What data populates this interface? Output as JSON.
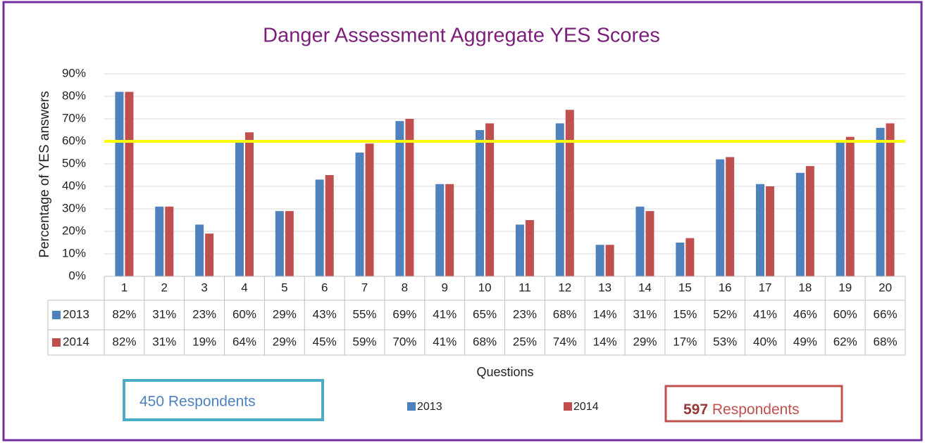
{
  "chart_data": {
    "type": "bar",
    "title": "Danger Assessment Aggregate YES Scores",
    "xlabel": "Questions",
    "ylabel": "Percentage of YES answers",
    "categories": [
      "1",
      "2",
      "3",
      "4",
      "5",
      "6",
      "7",
      "8",
      "9",
      "10",
      "11",
      "12",
      "13",
      "14",
      "15",
      "16",
      "17",
      "18",
      "19",
      "20"
    ],
    "series": [
      {
        "name": "2013",
        "color": "#4f81bd",
        "values": [
          82,
          31,
          23,
          60,
          29,
          43,
          55,
          69,
          41,
          65,
          23,
          68,
          14,
          31,
          15,
          52,
          41,
          46,
          60,
          66
        ],
        "value_labels": [
          "82%",
          "31%",
          "23%",
          "60%",
          "29%",
          "43%",
          "55%",
          "69%",
          "41%",
          "65%",
          "23%",
          "68%",
          "14%",
          "31%",
          "15%",
          "52%",
          "41%",
          "46%",
          "60%",
          "66%"
        ]
      },
      {
        "name": "2014",
        "color": "#c0504d",
        "values": [
          82,
          31,
          19,
          64,
          29,
          45,
          59,
          70,
          41,
          68,
          25,
          74,
          14,
          29,
          17,
          53,
          40,
          49,
          62,
          68
        ],
        "value_labels": [
          "82%",
          "31%",
          "19%",
          "64%",
          "29%",
          "45%",
          "59%",
          "70%",
          "41%",
          "68%",
          "25%",
          "74%",
          "14%",
          "29%",
          "17%",
          "53%",
          "40%",
          "49%",
          "62%",
          "68%"
        ]
      }
    ],
    "ylim": [
      0,
      90
    ],
    "yticks": [
      {
        "value": 0,
        "label": "0%"
      },
      {
        "value": 10,
        "label": "10%"
      },
      {
        "value": 20,
        "label": "20%"
      },
      {
        "value": 30,
        "label": "30%"
      },
      {
        "value": 40,
        "label": "40%"
      },
      {
        "value": 50,
        "label": "50%"
      },
      {
        "value": 60,
        "label": "60%"
      },
      {
        "value": 70,
        "label": "70%"
      },
      {
        "value": 80,
        "label": "80%"
      },
      {
        "value": 90,
        "label": "90%"
      }
    ],
    "grid": true,
    "reference_line": {
      "value": 60,
      "color": "#ffff00"
    },
    "annotations": [
      {
        "text": "450 Respondents"
      },
      {
        "parts": [
          "597",
          " Respondents"
        ]
      }
    ]
  }
}
